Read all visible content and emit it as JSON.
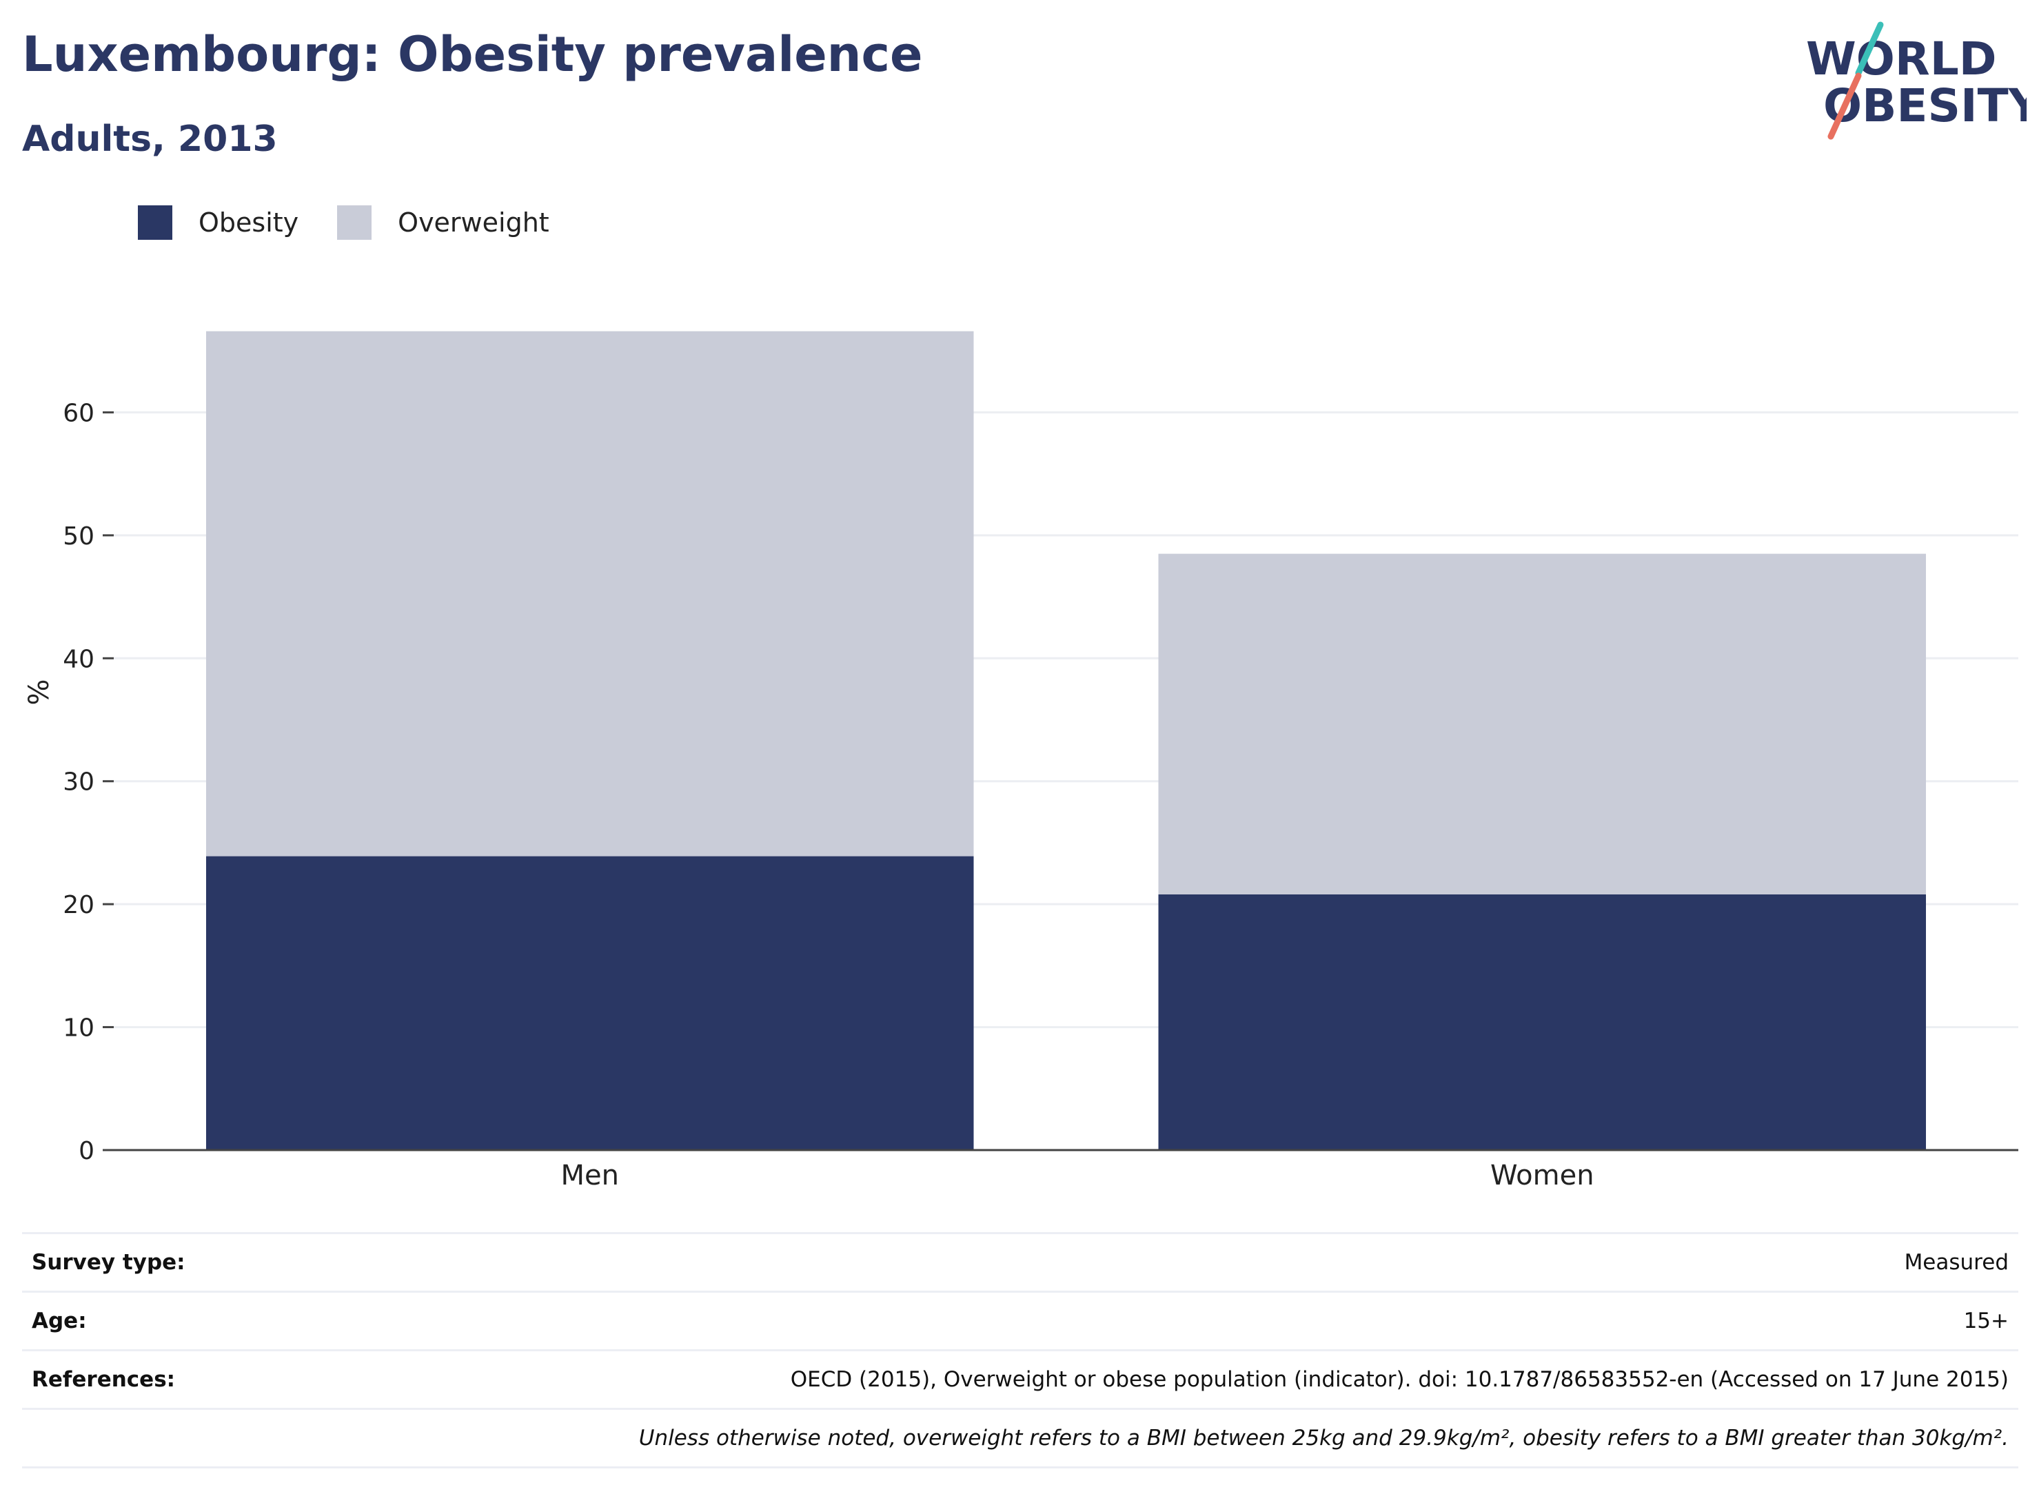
{
  "header": {
    "title": "Luxembourg: Obesity prevalence",
    "subtitle": "Adults, 2013"
  },
  "logo": {
    "line1": "WORLD",
    "line2": "OBESITY",
    "text_color": "#2b3764",
    "slash_teal": "#3bbfb8",
    "slash_coral": "#e8705f"
  },
  "legend": [
    {
      "name": "Obesity",
      "color": "#2a3764"
    },
    {
      "name": "Overweight",
      "color": "#c9ccd8"
    }
  ],
  "chart_data": {
    "type": "bar",
    "stacked": true,
    "categories": [
      "Men",
      "Women"
    ],
    "series": [
      {
        "name": "Obesity",
        "values": [
          23.9,
          20.8
        ],
        "color": "#2a3764"
      },
      {
        "name": "Overweight",
        "values": [
          42.7,
          27.7
        ],
        "color": "#c9ccd8"
      }
    ],
    "ylabel": "%",
    "ylim": [
      0,
      70
    ],
    "yticks": [
      0,
      10,
      20,
      30,
      40,
      50,
      60
    ],
    "grid": true,
    "legend_position": "top-left"
  },
  "info": [
    {
      "label": "Survey type:",
      "value": "Measured"
    },
    {
      "label": "Age:",
      "value": "15+"
    },
    {
      "label": "References:",
      "value": "OECD (2015), Overweight or obese population (indicator). doi: 10.1787/86583552-en (Accessed on 17 June 2015)"
    }
  ],
  "note": "Unless otherwise noted, overweight refers to a BMI between 25kg and 29.9kg/m², obesity refers to a BMI greater than 30kg/m²."
}
